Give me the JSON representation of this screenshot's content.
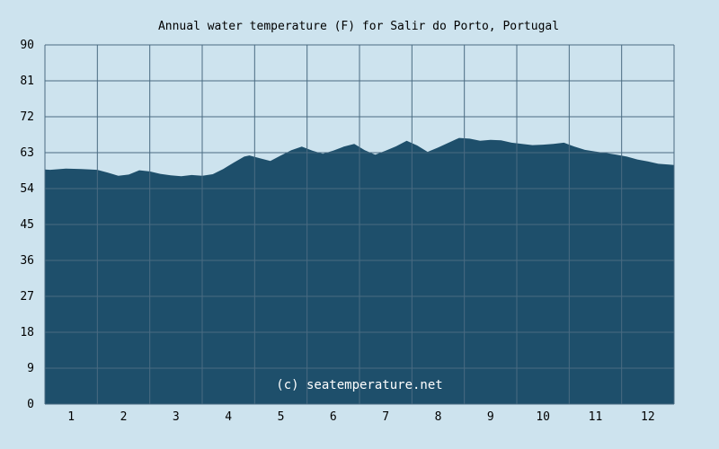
{
  "colors": {
    "background": "#cde3ee",
    "plot_background": "#cde3ee",
    "area_fill": "#1e4f6b",
    "grid": "#4a6b82",
    "watermark": "#ffffff"
  },
  "watermark": "(c) seatemperature.net",
  "chart_data": {
    "type": "area",
    "title": "Annual water temperature (F) for Salir do Porto, Portugal",
    "xlabel": "",
    "ylabel": "",
    "xlim": [
      0.5,
      12.5
    ],
    "ylim": [
      0,
      90
    ],
    "y_ticks": [
      "0",
      "9",
      "18",
      "27",
      "36",
      "45",
      "54",
      "63",
      "72",
      "81",
      "90"
    ],
    "x_ticks": [
      "1",
      "2",
      "3",
      "4",
      "5",
      "6",
      "7",
      "8",
      "9",
      "10",
      "11",
      "12"
    ],
    "grid": true,
    "legend": "none",
    "series": [
      {
        "x": [
          0.5,
          0.6,
          0.9,
          1.2,
          1.5,
          1.7,
          1.9,
          2.1,
          2.3,
          2.5,
          2.7,
          2.9,
          3.1,
          3.3,
          3.5,
          3.7,
          3.9,
          4.1,
          4.3,
          4.4,
          4.6,
          4.8,
          5.0,
          5.2,
          5.4,
          5.6,
          5.8,
          6.0,
          6.2,
          6.4,
          6.6,
          6.8,
          7.0,
          7.2,
          7.4,
          7.6,
          7.8,
          8.0,
          8.2,
          8.4,
          8.6,
          8.8,
          9.0,
          9.2,
          9.4,
          9.6,
          9.8,
          10.0,
          10.2,
          10.4,
          10.6,
          10.8,
          11.0,
          11.2,
          11.4,
          11.6,
          11.8,
          12.0,
          12.2,
          12.4,
          12.5
        ],
        "y": [
          58.8,
          58.7,
          59.0,
          58.9,
          58.7,
          58.0,
          57.2,
          57.5,
          58.6,
          58.3,
          57.7,
          57.3,
          57.1,
          57.4,
          57.2,
          57.6,
          58.9,
          60.5,
          62.0,
          62.3,
          61.6,
          60.9,
          62.3,
          63.6,
          64.5,
          63.5,
          62.7,
          63.5,
          64.5,
          65.2,
          63.6,
          62.5,
          63.5,
          64.6,
          66.0,
          64.8,
          63.2,
          64.3,
          65.5,
          66.7,
          66.5,
          66.0,
          66.2,
          66.1,
          65.5,
          65.2,
          64.9,
          65.0,
          65.2,
          65.5,
          64.5,
          63.7,
          63.3,
          62.9,
          62.5,
          62.0,
          61.3,
          60.8,
          60.2,
          60.0,
          59.9
        ]
      }
    ]
  }
}
